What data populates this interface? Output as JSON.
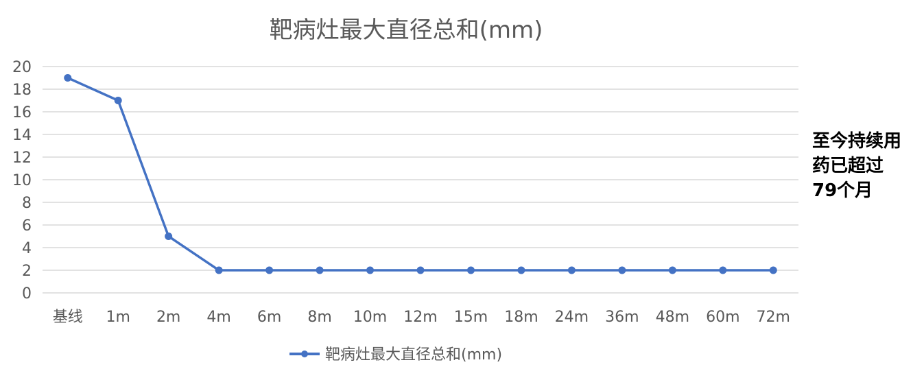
{
  "colors": {
    "series": "#4472C4",
    "grid": "#D9D9D9",
    "text": "#595959",
    "note": "#000000"
  },
  "chart_data": {
    "type": "line",
    "title": "靶病灶最大直径总和(mm)",
    "xlabel": "",
    "ylabel": "",
    "categories": [
      "基线",
      "1m",
      "2m",
      "4m",
      "6m",
      "8m",
      "10m",
      "12m",
      "15m",
      "18m",
      "24m",
      "36m",
      "48m",
      "60m",
      "72m"
    ],
    "series": [
      {
        "name": "靶病灶最大直径总和(mm)",
        "values": [
          19,
          17,
          5,
          2,
          2,
          2,
          2,
          2,
          2,
          2,
          2,
          2,
          2,
          2,
          2
        ]
      }
    ],
    "ylim": [
      0,
      20
    ],
    "yticks": [
      0,
      2,
      4,
      6,
      8,
      10,
      12,
      14,
      16,
      18,
      20
    ],
    "grid": true,
    "legend_position": "bottom",
    "markers": true
  },
  "note": {
    "lines": [
      "至今持续用",
      "药已超过",
      "79个月"
    ]
  }
}
